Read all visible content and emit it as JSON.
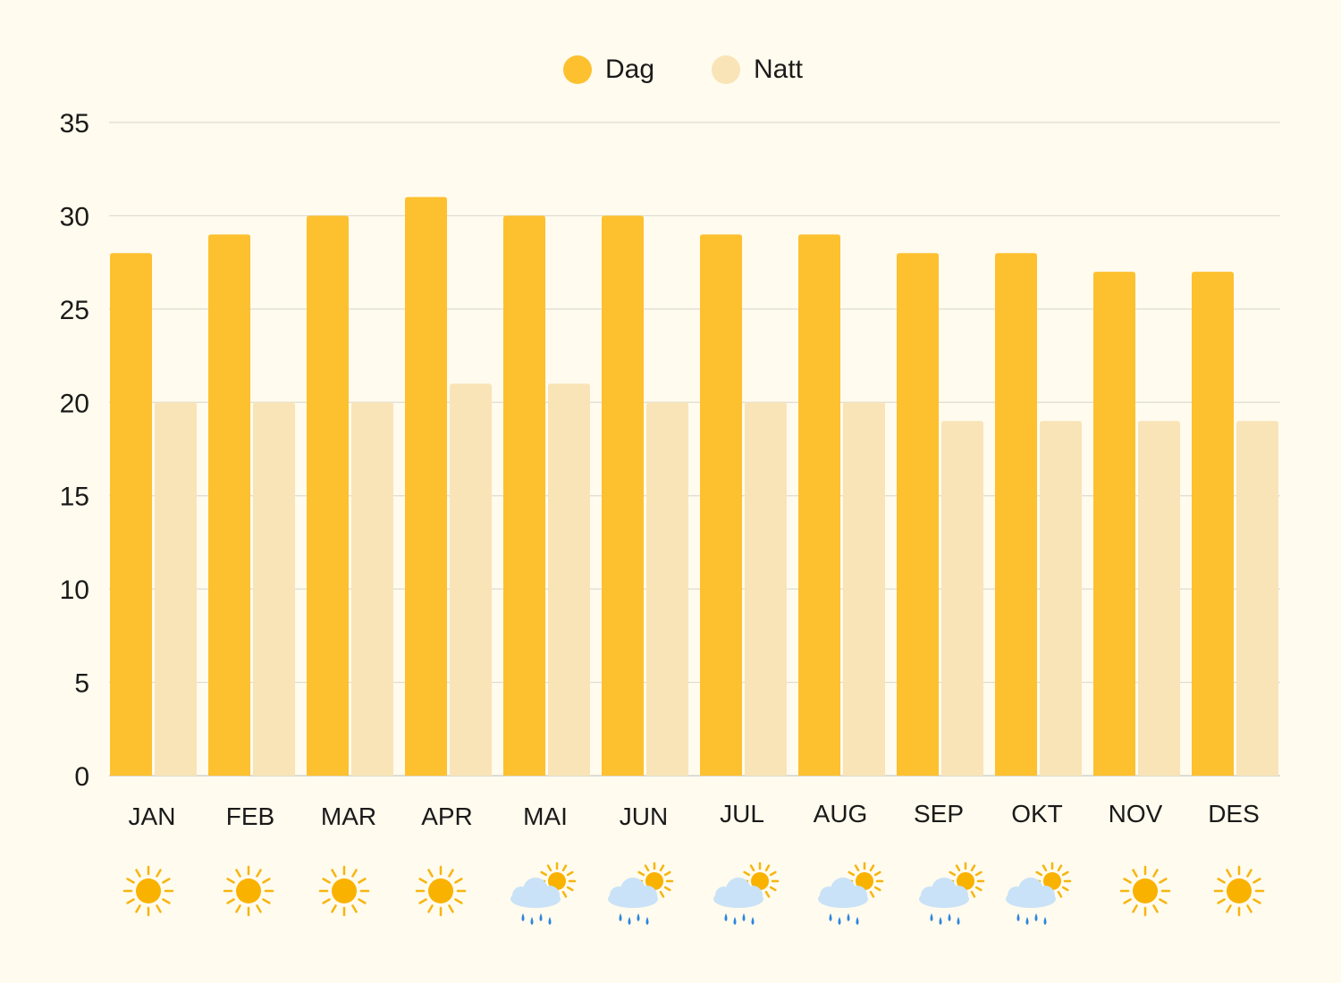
{
  "chart_data": {
    "type": "bar",
    "categories": [
      "JAN",
      "FEB",
      "MAR",
      "APR",
      "MAI",
      "JUN",
      "JUL",
      "AUG",
      "SEP",
      "OKT",
      "NOV",
      "DES"
    ],
    "series": [
      {
        "name": "Dag",
        "values": [
          28,
          29,
          30,
          31,
          30,
          30,
          29,
          29,
          28,
          28,
          27,
          27
        ],
        "color": "#fdc02f"
      },
      {
        "name": "Natt",
        "values": [
          20,
          20,
          20,
          21,
          21,
          20,
          20,
          20,
          19,
          19,
          19,
          19
        ],
        "color": "#f9e4b7"
      }
    ],
    "ylim": [
      0,
      35
    ],
    "yticks": [
      0,
      5,
      10,
      15,
      20,
      25,
      30,
      35
    ],
    "grid": true,
    "legend": "top-center",
    "weather_icons": [
      "sun-icon",
      "sun-icon",
      "sun-icon",
      "sun-icon",
      "rain-sun-icon",
      "rain-sun-icon",
      "rain-sun-icon",
      "rain-sun-icon",
      "rain-sun-icon",
      "rain-sun-icon",
      "sun-icon",
      "sun-icon"
    ]
  },
  "colors": {
    "background": "#fffbee",
    "grid": "#dcdcd4",
    "sun": "#f9b200",
    "sun_ray": "#f6b511",
    "cloud": "#c9e2f7",
    "rain": "#2f86dc"
  }
}
